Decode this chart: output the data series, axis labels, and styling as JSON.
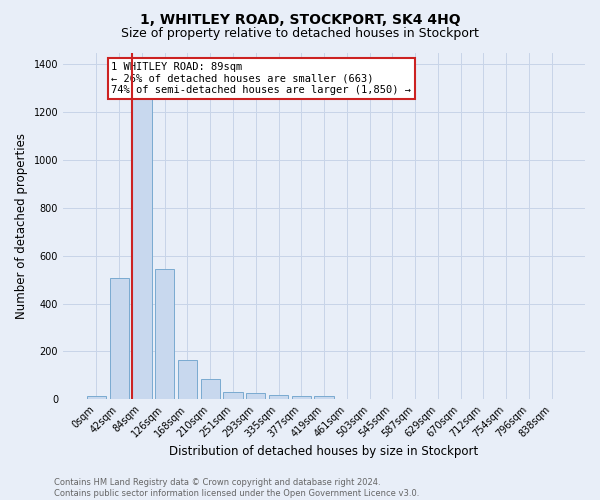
{
  "title": "1, WHITLEY ROAD, STOCKPORT, SK4 4HQ",
  "subtitle": "Size of property relative to detached houses in Stockport",
  "xlabel": "Distribution of detached houses by size in Stockport",
  "ylabel": "Number of detached properties",
  "bar_labels": [
    "0sqm",
    "42sqm",
    "84sqm",
    "126sqm",
    "168sqm",
    "210sqm",
    "251sqm",
    "293sqm",
    "335sqm",
    "377sqm",
    "419sqm",
    "461sqm",
    "503sqm",
    "545sqm",
    "587sqm",
    "629sqm",
    "670sqm",
    "712sqm",
    "754sqm",
    "796sqm",
    "838sqm"
  ],
  "bar_values": [
    15,
    505,
    1340,
    545,
    165,
    85,
    32,
    25,
    18,
    15,
    13,
    0,
    0,
    0,
    0,
    0,
    0,
    0,
    0,
    0,
    0
  ],
  "bar_color": "#c8d8ee",
  "bar_edge_color": "#7aaad0",
  "highlight_bar_index": 2,
  "red_line_color": "#cc2222",
  "annotation_text": "1 WHITLEY ROAD: 89sqm\n← 26% of detached houses are smaller (663)\n74% of semi-detached houses are larger (1,850) →",
  "annotation_box_color": "#ffffff",
  "annotation_box_edge_color": "#cc2222",
  "ylim": [
    0,
    1450
  ],
  "yticks": [
    0,
    200,
    400,
    600,
    800,
    1000,
    1200,
    1400
  ],
  "grid_color": "#c8d4e8",
  "background_color": "#e8eef8",
  "footer_text": "Contains HM Land Registry data © Crown copyright and database right 2024.\nContains public sector information licensed under the Open Government Licence v3.0.",
  "title_fontsize": 10,
  "subtitle_fontsize": 9,
  "xlabel_fontsize": 8.5,
  "ylabel_fontsize": 8.5,
  "tick_fontsize": 7,
  "annotation_fontsize": 7.5,
  "footer_fontsize": 6
}
